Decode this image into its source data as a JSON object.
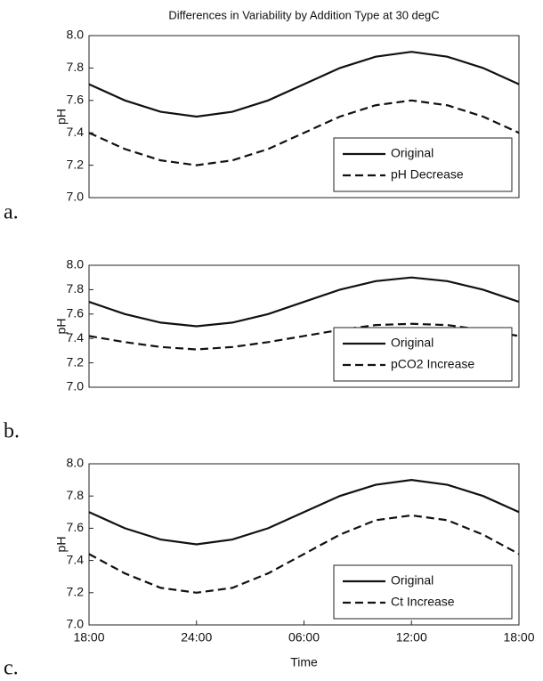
{
  "chart_data": [
    {
      "type": "line",
      "title": "Differences in Variability by Addition Type at 30 degC",
      "panel_label": "a.",
      "ylabel": "pH",
      "x": [
        0,
        2,
        4,
        6,
        8,
        10,
        12,
        14,
        16,
        18,
        20,
        22,
        24
      ],
      "xlim": [
        0,
        24
      ],
      "ylim": [
        7.0,
        8.0
      ],
      "yticks": [
        {
          "value": 7.0,
          "label": "7.0"
        },
        7.2,
        7.4,
        7.6,
        7.8,
        {
          "value": 8.0,
          "label": "8.0"
        }
      ],
      "legend": "lower right",
      "series": [
        {
          "name": "Original",
          "color": "#111111",
          "dashed": false,
          "values": [
            7.7,
            7.6,
            7.53,
            7.5,
            7.53,
            7.6,
            7.7,
            7.8,
            7.87,
            7.9,
            7.87,
            7.8,
            7.7
          ]
        },
        {
          "name": "pH Decrease",
          "color": "#111111",
          "dashed": true,
          "values": [
            7.4,
            7.3,
            7.23,
            7.2,
            7.23,
            7.3,
            7.4,
            7.5,
            7.57,
            7.6,
            7.57,
            7.5,
            7.4
          ]
        }
      ]
    },
    {
      "type": "line",
      "panel_label": "b.",
      "ylabel": "pH",
      "x": [
        0,
        2,
        4,
        6,
        8,
        10,
        12,
        14,
        16,
        18,
        20,
        22,
        24
      ],
      "xlim": [
        0,
        24
      ],
      "ylim": [
        7.0,
        8.0
      ],
      "yticks": [
        {
          "value": 7.0,
          "label": "7.0"
        },
        7.2,
        7.4,
        7.6,
        7.8,
        {
          "value": 8.0,
          "label": "8.0"
        }
      ],
      "legend": "lower right",
      "series": [
        {
          "name": "Original",
          "color": "#111111",
          "dashed": false,
          "values": [
            7.7,
            7.6,
            7.53,
            7.5,
            7.53,
            7.6,
            7.7,
            7.8,
            7.87,
            7.9,
            7.87,
            7.8,
            7.7
          ]
        },
        {
          "name": "pCO2 Increase",
          "color": "#111111",
          "dashed": true,
          "values": [
            7.42,
            7.37,
            7.33,
            7.31,
            7.33,
            7.37,
            7.42,
            7.47,
            7.51,
            7.52,
            7.51,
            7.47,
            7.42
          ]
        }
      ]
    },
    {
      "type": "line",
      "panel_label": "c.",
      "ylabel": "pH",
      "xlabel": "Time",
      "x": [
        0,
        2,
        4,
        6,
        8,
        10,
        12,
        14,
        16,
        18,
        20,
        22,
        24
      ],
      "xlim": [
        0,
        24
      ],
      "xticks": [
        {
          "value": 0,
          "label": "18:00"
        },
        {
          "value": 6,
          "label": "24:00"
        },
        {
          "value": 12,
          "label": "06:00"
        },
        {
          "value": 18,
          "label": "12:00"
        },
        {
          "value": 24,
          "label": "18:00"
        }
      ],
      "ylim": [
        7.0,
        8.0
      ],
      "yticks": [
        {
          "value": 7.0,
          "label": "7.0"
        },
        7.2,
        7.4,
        7.6,
        7.8,
        {
          "value": 8.0,
          "label": "8.0"
        }
      ],
      "legend": "lower right",
      "series": [
        {
          "name": "Original",
          "color": "#111111",
          "dashed": false,
          "values": [
            7.7,
            7.6,
            7.53,
            7.5,
            7.53,
            7.6,
            7.7,
            7.8,
            7.87,
            7.9,
            7.87,
            7.8,
            7.7
          ]
        },
        {
          "name": "Ct Increase",
          "color": "#111111",
          "dashed": true,
          "values": [
            7.44,
            7.32,
            7.23,
            7.2,
            7.23,
            7.32,
            7.44,
            7.56,
            7.65,
            7.68,
            7.65,
            7.56,
            7.44
          ]
        }
      ]
    }
  ]
}
